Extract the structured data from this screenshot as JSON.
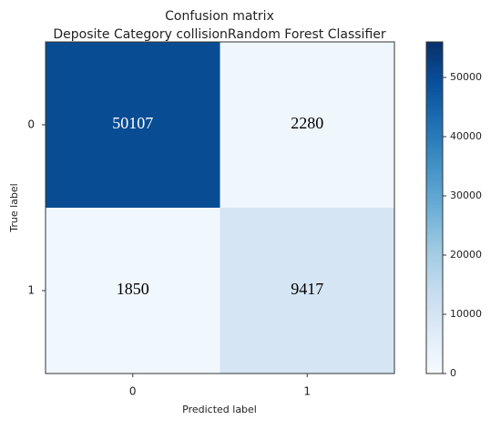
{
  "chart_data": {
    "type": "heatmap",
    "title": "Confusion matrix",
    "subtitle": "Deposite Category collisionRandom Forest Classifier",
    "x_label": "Predicted label",
    "y_label": "True label",
    "x_categories": [
      "0",
      "1"
    ],
    "y_categories": [
      "0",
      "1"
    ],
    "values": [
      [
        50107,
        2280
      ],
      [
        1850,
        9417
      ]
    ],
    "colormap": "Blues",
    "clim": [
      0,
      56000
    ],
    "cticks": [
      0,
      10000,
      20000,
      30000,
      40000,
      50000
    ]
  }
}
